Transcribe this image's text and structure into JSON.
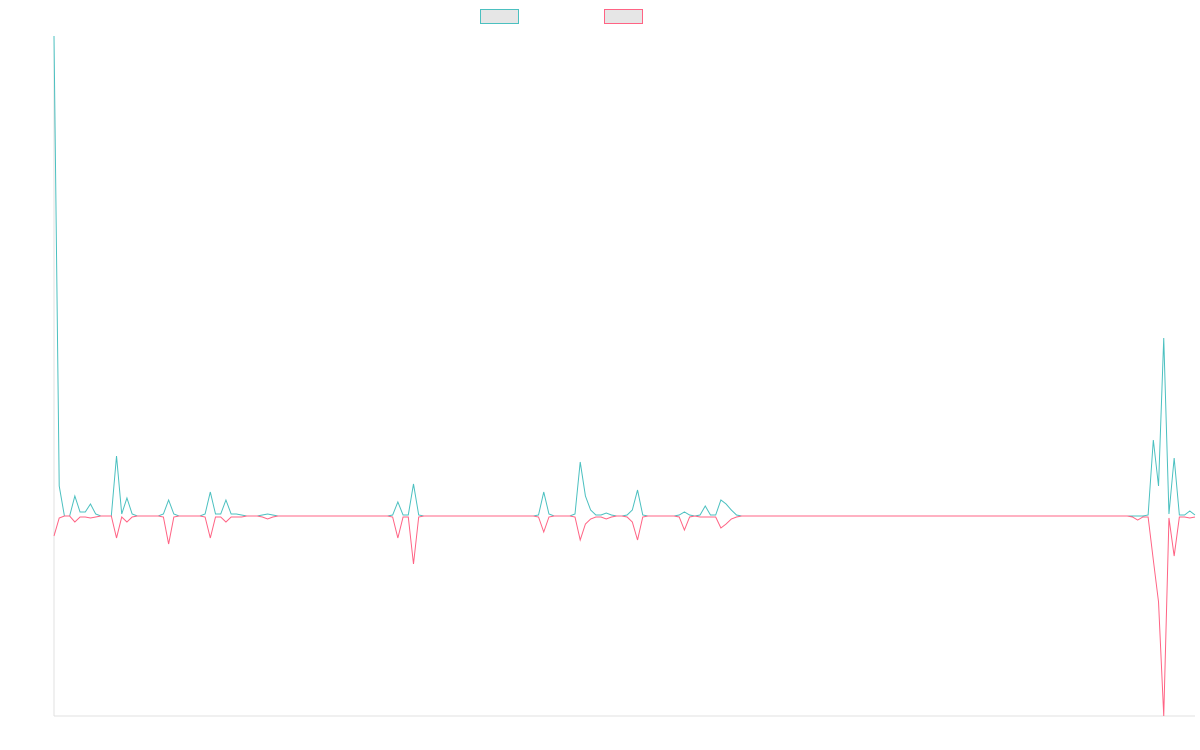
{
  "chart_data": {
    "type": "line",
    "title": "",
    "xlabel": "",
    "ylabel": "",
    "grid": false,
    "legend_position": "top-center",
    "x_count": 220,
    "ylim": [
      -1.0,
      2.4
    ],
    "series": [
      {
        "name": "",
        "color": "#4bc0c0",
        "points": [
          [
            0,
            2.4
          ],
          [
            1,
            0.15
          ],
          [
            2,
            0
          ],
          [
            4,
            0.1
          ],
          [
            5,
            0.02
          ],
          [
            6,
            0.02
          ],
          [
            7,
            0.06
          ],
          [
            8,
            0.01
          ],
          [
            12,
            0.3
          ],
          [
            13,
            0.01
          ],
          [
            14,
            0.09
          ],
          [
            15,
            0.01
          ],
          [
            21,
            0.01
          ],
          [
            22,
            0.08
          ],
          [
            23,
            0.01
          ],
          [
            29,
            0.01
          ],
          [
            30,
            0.12
          ],
          [
            31,
            0.01
          ],
          [
            32,
            0.01
          ],
          [
            33,
            0.08
          ],
          [
            34,
            0.01
          ],
          [
            35,
            0.01
          ],
          [
            36,
            0.005
          ],
          [
            40,
            0.005
          ],
          [
            41,
            0.01
          ],
          [
            42,
            0.005
          ],
          [
            65,
            0.005
          ],
          [
            66,
            0.07
          ],
          [
            67,
            0.005
          ],
          [
            68,
            0.005
          ],
          [
            69,
            0.16
          ],
          [
            70,
            0.005
          ],
          [
            93,
            0.005
          ],
          [
            94,
            0.12
          ],
          [
            95,
            0.01
          ],
          [
            100,
            0.01
          ],
          [
            101,
            0.27
          ],
          [
            102,
            0.1
          ],
          [
            103,
            0.03
          ],
          [
            104,
            0.005
          ],
          [
            105,
            0.005
          ],
          [
            106,
            0.015
          ],
          [
            107,
            0.005
          ],
          [
            110,
            0.005
          ],
          [
            111,
            0.03
          ],
          [
            112,
            0.13
          ],
          [
            113,
            0.005
          ],
          [
            120,
            0.005
          ],
          [
            121,
            0.02
          ],
          [
            122,
            0.005
          ],
          [
            124,
            0.005
          ],
          [
            125,
            0.05
          ],
          [
            126,
            0.005
          ],
          [
            127,
            0.005
          ],
          [
            128,
            0.08
          ],
          [
            129,
            0.06
          ],
          [
            130,
            0.03
          ],
          [
            131,
            0.005
          ],
          [
            217,
            0.005
          ],
          [
            218,
            0.025
          ],
          [
            219,
            0.005
          ],
          [
            210,
            0.005
          ],
          [
            211,
            0.38
          ],
          [
            212,
            0.15
          ],
          [
            213,
            0.89
          ],
          [
            214,
            0.01
          ],
          [
            215,
            0.29
          ],
          [
            216,
            0.005
          ]
        ]
      },
      {
        "name": "",
        "color": "#ff6384",
        "points": [
          [
            0,
            -0.1
          ],
          [
            1,
            -0.01
          ],
          [
            2,
            0
          ],
          [
            4,
            -0.03
          ],
          [
            5,
            -0.005
          ],
          [
            6,
            -0.005
          ],
          [
            7,
            -0.01
          ],
          [
            8,
            -0.005
          ],
          [
            12,
            -0.11
          ],
          [
            13,
            -0.005
          ],
          [
            14,
            -0.03
          ],
          [
            15,
            -0.005
          ],
          [
            21,
            -0.005
          ],
          [
            22,
            -0.14
          ],
          [
            23,
            -0.005
          ],
          [
            29,
            -0.005
          ],
          [
            30,
            -0.11
          ],
          [
            31,
            -0.005
          ],
          [
            32,
            -0.005
          ],
          [
            33,
            -0.03
          ],
          [
            34,
            -0.005
          ],
          [
            35,
            -0.005
          ],
          [
            36,
            -0.005
          ],
          [
            40,
            -0.005
          ],
          [
            41,
            -0.015
          ],
          [
            42,
            -0.005
          ],
          [
            65,
            -0.005
          ],
          [
            66,
            -0.11
          ],
          [
            67,
            -0.005
          ],
          [
            68,
            -0.005
          ],
          [
            69,
            -0.24
          ],
          [
            70,
            -0.005
          ],
          [
            93,
            -0.005
          ],
          [
            94,
            -0.08
          ],
          [
            95,
            -0.005
          ],
          [
            100,
            -0.005
          ],
          [
            101,
            -0.12
          ],
          [
            102,
            -0.04
          ],
          [
            103,
            -0.015
          ],
          [
            104,
            -0.005
          ],
          [
            105,
            -0.005
          ],
          [
            106,
            -0.015
          ],
          [
            107,
            -0.005
          ],
          [
            110,
            -0.005
          ],
          [
            111,
            -0.03
          ],
          [
            112,
            -0.12
          ],
          [
            113,
            -0.005
          ],
          [
            120,
            -0.005
          ],
          [
            121,
            -0.07
          ],
          [
            122,
            -0.005
          ],
          [
            124,
            -0.005
          ],
          [
            125,
            -0.005
          ],
          [
            126,
            -0.005
          ],
          [
            127,
            -0.005
          ],
          [
            128,
            -0.06
          ],
          [
            129,
            -0.04
          ],
          [
            130,
            -0.015
          ],
          [
            131,
            -0.005
          ],
          [
            207,
            -0.005
          ],
          [
            208,
            -0.02
          ],
          [
            209,
            -0.005
          ],
          [
            210,
            -0.005
          ],
          [
            211,
            -0.22
          ],
          [
            212,
            -0.43
          ],
          [
            213,
            -1.0
          ],
          [
            214,
            -0.01
          ],
          [
            215,
            -0.2
          ],
          [
            216,
            -0.005
          ],
          [
            217,
            -0.005
          ],
          [
            218,
            -0.01
          ],
          [
            219,
            -0.005
          ]
        ]
      }
    ]
  }
}
